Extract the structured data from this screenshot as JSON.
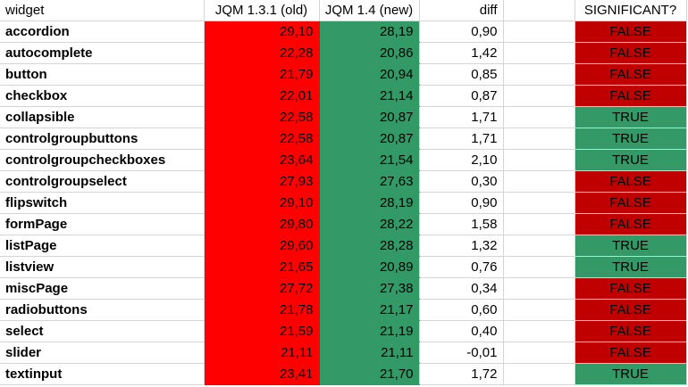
{
  "colors": {
    "old_bg": "#ff0000",
    "new_bg": "#339966",
    "false_bg": "#c00000",
    "true_bg": "#339966"
  },
  "header": {
    "widget": "widget",
    "old": "JQM 1.3.1 (old)",
    "new": "JQM 1.4 (new)",
    "diff": "diff",
    "significant": "SIGNIFICANT?"
  },
  "rows": [
    {
      "widget": "accordion",
      "old": "29,10",
      "new": "28,19",
      "diff": "0,90",
      "significant": "FALSE"
    },
    {
      "widget": "autocomplete",
      "old": "22,28",
      "new": "20,86",
      "diff": "1,42",
      "significant": "FALSE"
    },
    {
      "widget": "button",
      "old": "21,79",
      "new": "20,94",
      "diff": "0,85",
      "significant": "FALSE"
    },
    {
      "widget": "checkbox",
      "old": "22,01",
      "new": "21,14",
      "diff": "0,87",
      "significant": "FALSE"
    },
    {
      "widget": "collapsible",
      "old": "22,58",
      "new": "20,87",
      "diff": "1,71",
      "significant": "TRUE"
    },
    {
      "widget": "controlgroupbuttons",
      "old": "22,58",
      "new": "20,87",
      "diff": "1,71",
      "significant": "TRUE"
    },
    {
      "widget": "controlgroupcheckboxes",
      "old": "23,64",
      "new": "21,54",
      "diff": "2,10",
      "significant": "TRUE"
    },
    {
      "widget": "controlgroupselect",
      "old": "27,93",
      "new": "27,63",
      "diff": "0,30",
      "significant": "FALSE"
    },
    {
      "widget": "flipswitch",
      "old": "29,10",
      "new": "28,19",
      "diff": "0,90",
      "significant": "FALSE"
    },
    {
      "widget": "formPage",
      "old": "29,80",
      "new": "28,22",
      "diff": "1,58",
      "significant": "FALSE"
    },
    {
      "widget": "listPage",
      "old": "29,60",
      "new": "28,28",
      "diff": "1,32",
      "significant": "TRUE"
    },
    {
      "widget": "listview",
      "old": "21,65",
      "new": "20,89",
      "diff": "0,76",
      "significant": "TRUE"
    },
    {
      "widget": "miscPage",
      "old": "27,72",
      "new": "27,38",
      "diff": "0,34",
      "significant": "FALSE"
    },
    {
      "widget": "radiobuttons",
      "old": "21,78",
      "new": "21,17",
      "diff": "0,60",
      "significant": "FALSE"
    },
    {
      "widget": "select",
      "old": "21,59",
      "new": "21,19",
      "diff": "0,40",
      "significant": "FALSE"
    },
    {
      "widget": "slider",
      "old": "21,11",
      "new": "21,11",
      "diff": "-0,01",
      "significant": "FALSE"
    },
    {
      "widget": "textinput",
      "old": "23,41",
      "new": "21,70",
      "diff": "1,72",
      "significant": "TRUE"
    }
  ]
}
